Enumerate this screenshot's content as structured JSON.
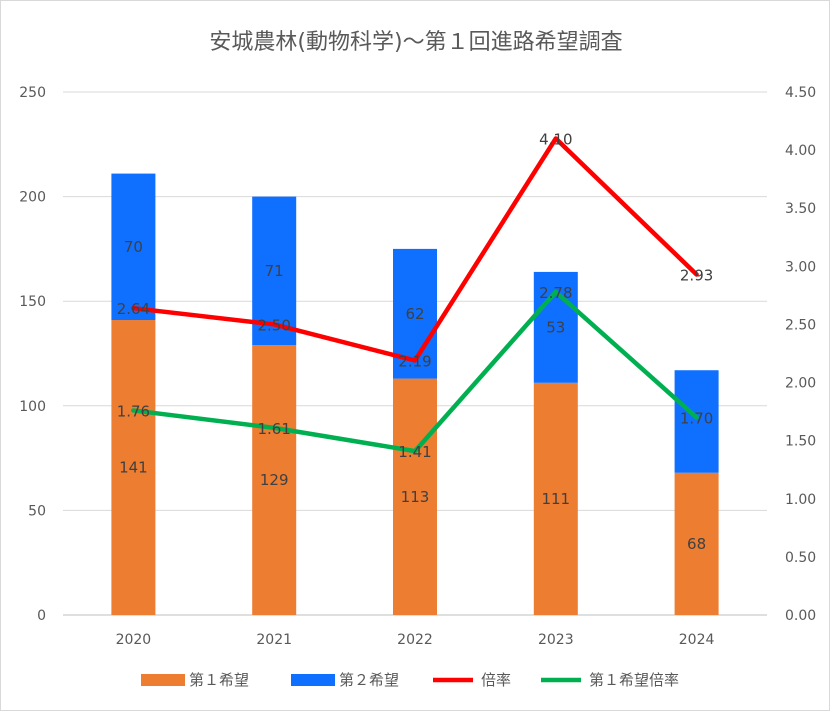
{
  "chart_data": {
    "type": "bar",
    "title": "安城農林(動物科学)～第１回進路希望調査",
    "categories": [
      "2020",
      "2021",
      "2022",
      "2023",
      "2024"
    ],
    "left_axis": {
      "min": 0,
      "max": 250,
      "step": 50,
      "ticks": [
        "0",
        "50",
        "100",
        "150",
        "200",
        "250"
      ]
    },
    "right_axis": {
      "min": 0,
      "max": 4.5,
      "step": 0.5,
      "ticks": [
        "0.00",
        "0.50",
        "1.00",
        "1.50",
        "2.00",
        "2.50",
        "3.00",
        "3.50",
        "4.00",
        "4.50"
      ]
    },
    "grid": true,
    "legend_position": "bottom",
    "series": [
      {
        "name": "第１希望",
        "type": "bar",
        "stacked": true,
        "axis": "left",
        "color": "#ED7D31",
        "values": [
          141,
          129,
          113,
          111,
          68
        ],
        "labels": [
          "141",
          "129",
          "113",
          "111",
          "68"
        ],
        "label_color": "#404040"
      },
      {
        "name": "第２希望",
        "type": "bar",
        "stacked": true,
        "axis": "left",
        "color": "#0F6FFF",
        "values": [
          70,
          71,
          62,
          53,
          49
        ],
        "labels": [
          "70",
          "71",
          "62",
          "53",
          ""
        ],
        "label_color": "#404040"
      },
      {
        "name": "倍率",
        "type": "line",
        "axis": "right",
        "color": "#FF0000",
        "values": [
          2.64,
          2.5,
          2.19,
          4.1,
          2.93
        ],
        "labels": [
          "2.64",
          "2.50",
          "2.19",
          "4.10",
          "2.93"
        ],
        "label_color": "#404040"
      },
      {
        "name": "第１希望倍率",
        "type": "line",
        "axis": "right",
        "color": "#00B050",
        "values": [
          1.76,
          1.61,
          1.41,
          2.78,
          1.7
        ],
        "labels": [
          "1.76",
          "1.61",
          "1.41",
          "2.78",
          "1.70"
        ],
        "label_color": "#FFFF00"
      }
    ]
  }
}
